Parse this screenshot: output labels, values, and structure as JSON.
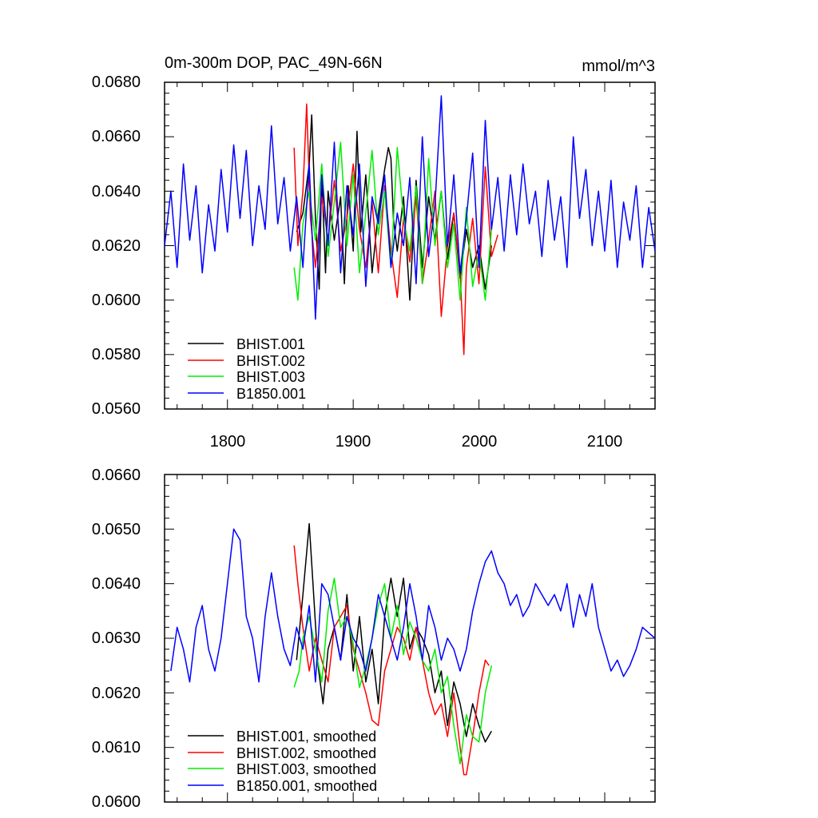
{
  "figure": {
    "layout": "two stacked panels"
  },
  "chart_data": [
    {
      "type": "line",
      "title": "0m-300m DOP, PAC_49N-66N",
      "units": "mmol/m^3",
      "xlabel": "",
      "ylabel": "",
      "xlim": [
        1750,
        2140
      ],
      "ylim": [
        0.056,
        0.068
      ],
      "xticks": [
        1800,
        1900,
        2000,
        2100
      ],
      "xtick_labels": [
        "1800",
        "1900",
        "2000",
        "2100"
      ],
      "yticks": [
        0.056,
        0.058,
        0.06,
        0.062,
        0.064,
        0.066,
        0.068
      ],
      "ytick_labels": [
        "0.0560",
        "0.0580",
        "0.0600",
        "0.0620",
        "0.0640",
        "0.0660",
        "0.0680"
      ],
      "legend_position": "bottom-left",
      "series": [
        {
          "name": "BHIST.001",
          "color": "#000000",
          "x": [
            1855,
            1860,
            1865,
            1867,
            1870,
            1873,
            1875,
            1878,
            1880,
            1885,
            1890,
            1893,
            1896,
            1900,
            1903,
            1906,
            1910,
            1915,
            1920,
            1925,
            1928,
            1930,
            1932,
            1935,
            1940,
            1945,
            1948,
            1950,
            1955,
            1960,
            1965,
            1970,
            1975,
            1980,
            1985,
            1990,
            1995,
            2000,
            2005,
            2010
          ],
          "values": [
            0.0625,
            0.0632,
            0.065,
            0.0668,
            0.063,
            0.0604,
            0.0646,
            0.061,
            0.064,
            0.0622,
            0.0638,
            0.0606,
            0.0642,
            0.0618,
            0.0662,
            0.0625,
            0.0646,
            0.061,
            0.0632,
            0.0648,
            0.0656,
            0.0652,
            0.063,
            0.0618,
            0.0638,
            0.06,
            0.0626,
            0.0644,
            0.0612,
            0.0638,
            0.0622,
            0.064,
            0.0615,
            0.0632,
            0.0608,
            0.0626,
            0.0612,
            0.062,
            0.0604,
            0.062
          ]
        },
        {
          "name": "BHIST.002",
          "color": "#ff0000",
          "x": [
            1853,
            1856,
            1860,
            1863,
            1866,
            1870,
            1875,
            1880,
            1885,
            1890,
            1895,
            1900,
            1905,
            1910,
            1915,
            1920,
            1925,
            1930,
            1935,
            1940,
            1945,
            1950,
            1955,
            1960,
            1965,
            1970,
            1975,
            1980,
            1985,
            1988,
            1990,
            1995,
            2000,
            2005,
            2010,
            2015
          ],
          "values": [
            0.0656,
            0.062,
            0.064,
            0.0672,
            0.063,
            0.0612,
            0.0638,
            0.0622,
            0.0644,
            0.0618,
            0.063,
            0.065,
            0.0626,
            0.0612,
            0.0636,
            0.061,
            0.0642,
            0.0618,
            0.0601,
            0.063,
            0.0614,
            0.0638,
            0.0606,
            0.0622,
            0.064,
            0.0594,
            0.062,
            0.0632,
            0.061,
            0.058,
            0.0612,
            0.063,
            0.0606,
            0.0649,
            0.0616,
            0.0624
          ]
        },
        {
          "name": "BHIST.003",
          "color": "#00ee00",
          "x": [
            1853,
            1856,
            1860,
            1865,
            1870,
            1875,
            1880,
            1885,
            1890,
            1895,
            1900,
            1905,
            1910,
            1915,
            1920,
            1925,
            1930,
            1935,
            1940,
            1945,
            1950,
            1955,
            1960,
            1965,
            1970,
            1975,
            1980,
            1985,
            1990,
            1995,
            2000,
            2005,
            2010
          ],
          "values": [
            0.0612,
            0.06,
            0.0628,
            0.064,
            0.0622,
            0.065,
            0.0616,
            0.0636,
            0.0658,
            0.062,
            0.0646,
            0.061,
            0.0632,
            0.0655,
            0.0624,
            0.064,
            0.0612,
            0.0656,
            0.063,
            0.0618,
            0.0642,
            0.0606,
            0.0652,
            0.062,
            0.064,
            0.0612,
            0.0628,
            0.06,
            0.0634,
            0.0605,
            0.0618,
            0.06,
            0.0626
          ]
        },
        {
          "name": "B1850.001",
          "color": "#0000ff",
          "x": [
            1750,
            1755,
            1760,
            1765,
            1770,
            1775,
            1780,
            1785,
            1790,
            1795,
            1800,
            1805,
            1810,
            1815,
            1820,
            1825,
            1830,
            1835,
            1840,
            1845,
            1850,
            1855,
            1860,
            1865,
            1870,
            1875,
            1880,
            1885,
            1890,
            1895,
            1900,
            1905,
            1910,
            1915,
            1920,
            1925,
            1930,
            1935,
            1940,
            1945,
            1950,
            1955,
            1960,
            1965,
            1970,
            1975,
            1980,
            1985,
            1990,
            1995,
            2000,
            2005,
            2010,
            2015,
            2020,
            2025,
            2030,
            2035,
            2040,
            2045,
            2050,
            2055,
            2060,
            2065,
            2070,
            2075,
            2080,
            2085,
            2090,
            2095,
            2100,
            2105,
            2110,
            2115,
            2120,
            2125,
            2130,
            2135,
            2140
          ],
          "values": [
            0.062,
            0.064,
            0.0612,
            0.065,
            0.0622,
            0.0642,
            0.061,
            0.0635,
            0.0618,
            0.0648,
            0.0625,
            0.0657,
            0.063,
            0.0655,
            0.062,
            0.0642,
            0.0626,
            0.0664,
            0.0628,
            0.0645,
            0.0618,
            0.0638,
            0.0612,
            0.065,
            0.0593,
            0.0646,
            0.062,
            0.0658,
            0.061,
            0.0642,
            0.0624,
            0.065,
            0.0605,
            0.0638,
            0.0628,
            0.0646,
            0.0612,
            0.0632,
            0.062,
            0.0645,
            0.0606,
            0.066,
            0.0616,
            0.0635,
            0.0675,
            0.062,
            0.0646,
            0.061,
            0.063,
            0.0654,
            0.0612,
            0.0666,
            0.0626,
            0.0645,
            0.0618,
            0.0646,
            0.0624,
            0.065,
            0.0628,
            0.064,
            0.0616,
            0.0644,
            0.0622,
            0.0638,
            0.0612,
            0.066,
            0.063,
            0.0648,
            0.062,
            0.064,
            0.0618,
            0.0644,
            0.0612,
            0.0636,
            0.0622,
            0.0642,
            0.0612,
            0.0634,
            0.0618
          ]
        }
      ]
    },
    {
      "type": "line",
      "title": "",
      "xlabel": "",
      "ylabel": "",
      "xlim": [
        1750,
        2140
      ],
      "ylim": [
        0.06,
        0.066
      ],
      "xticks": [
        1800,
        1900,
        2000,
        2100
      ],
      "xtick_labels": [],
      "yticks": [
        0.06,
        0.061,
        0.062,
        0.063,
        0.064,
        0.065,
        0.066
      ],
      "ytick_labels": [
        "0.0600",
        "0.0610",
        "0.0620",
        "0.0630",
        "0.0640",
        "0.0650",
        "0.0660"
      ],
      "legend_position": "bottom-left",
      "series": [
        {
          "name": "BHIST.001, smoothed",
          "color": "#000000",
          "x": [
            1855,
            1860,
            1865,
            1868,
            1872,
            1876,
            1880,
            1885,
            1890,
            1895,
            1900,
            1905,
            1910,
            1915,
            1920,
            1925,
            1930,
            1935,
            1940,
            1945,
            1950,
            1955,
            1960,
            1965,
            1970,
            1975,
            1980,
            1985,
            1990,
            1995,
            2000,
            2005,
            2010
          ],
          "values": [
            0.0626,
            0.0638,
            0.0651,
            0.064,
            0.0625,
            0.0618,
            0.0628,
            0.0632,
            0.0626,
            0.0638,
            0.0624,
            0.0634,
            0.0622,
            0.0628,
            0.0618,
            0.0634,
            0.0641,
            0.0634,
            0.0641,
            0.0628,
            0.0632,
            0.063,
            0.0627,
            0.062,
            0.0624,
            0.0614,
            0.0622,
            0.0618,
            0.0612,
            0.0618,
            0.0614,
            0.0611,
            0.0613
          ]
        },
        {
          "name": "BHIST.002, smoothed",
          "color": "#ff0000",
          "x": [
            1853,
            1856,
            1860,
            1865,
            1870,
            1875,
            1880,
            1885,
            1890,
            1895,
            1900,
            1905,
            1910,
            1915,
            1920,
            1925,
            1930,
            1935,
            1940,
            1945,
            1950,
            1955,
            1960,
            1965,
            1970,
            1975,
            1980,
            1985,
            1988,
            1990,
            1995,
            2000,
            2005,
            2008
          ],
          "values": [
            0.0647,
            0.064,
            0.0632,
            0.0624,
            0.063,
            0.0626,
            0.0622,
            0.0632,
            0.0634,
            0.0636,
            0.0628,
            0.0624,
            0.062,
            0.0615,
            0.0614,
            0.0624,
            0.0628,
            0.0632,
            0.063,
            0.0626,
            0.0632,
            0.0626,
            0.062,
            0.0616,
            0.0618,
            0.0612,
            0.062,
            0.061,
            0.0605,
            0.0605,
            0.0612,
            0.062,
            0.0626,
            0.0625
          ]
        },
        {
          "name": "BHIST.003, smoothed",
          "color": "#00ee00",
          "x": [
            1853,
            1857,
            1860,
            1865,
            1870,
            1875,
            1880,
            1885,
            1890,
            1895,
            1900,
            1905,
            1910,
            1915,
            1920,
            1925,
            1930,
            1935,
            1940,
            1945,
            1950,
            1955,
            1960,
            1965,
            1970,
            1975,
            1980,
            1985,
            1990,
            1995,
            2000,
            2005,
            2010
          ],
          "values": [
            0.0621,
            0.0624,
            0.063,
            0.0634,
            0.0628,
            0.0622,
            0.0635,
            0.0641,
            0.0632,
            0.0634,
            0.0629,
            0.0621,
            0.0625,
            0.063,
            0.0636,
            0.064,
            0.063,
            0.0636,
            0.0627,
            0.0633,
            0.063,
            0.0626,
            0.0624,
            0.0628,
            0.062,
            0.0623,
            0.0614,
            0.0607,
            0.0616,
            0.0612,
            0.0611,
            0.062,
            0.0625
          ]
        },
        {
          "name": "B1850.001, smoothed",
          "color": "#0000ff",
          "x": [
            1755,
            1760,
            1765,
            1770,
            1775,
            1780,
            1785,
            1790,
            1795,
            1800,
            1805,
            1810,
            1815,
            1820,
            1825,
            1830,
            1835,
            1840,
            1845,
            1850,
            1855,
            1860,
            1865,
            1870,
            1875,
            1880,
            1885,
            1890,
            1895,
            1900,
            1905,
            1910,
            1915,
            1920,
            1925,
            1930,
            1935,
            1940,
            1945,
            1950,
            1955,
            1960,
            1965,
            1970,
            1975,
            1980,
            1985,
            1990,
            1995,
            2000,
            2005,
            2010,
            2015,
            2020,
            2025,
            2030,
            2035,
            2040,
            2045,
            2050,
            2055,
            2060,
            2065,
            2070,
            2075,
            2080,
            2085,
            2090,
            2095,
            2100,
            2105,
            2110,
            2115,
            2120,
            2125,
            2130,
            2135,
            2140
          ],
          "values": [
            0.0624,
            0.0632,
            0.0628,
            0.0622,
            0.0632,
            0.0636,
            0.0628,
            0.0624,
            0.063,
            0.064,
            0.065,
            0.0648,
            0.0634,
            0.063,
            0.0622,
            0.0634,
            0.0642,
            0.0634,
            0.0628,
            0.0625,
            0.0632,
            0.0628,
            0.0636,
            0.0622,
            0.064,
            0.0638,
            0.0632,
            0.0626,
            0.0634,
            0.063,
            0.0628,
            0.0624,
            0.063,
            0.0638,
            0.0634,
            0.063,
            0.0626,
            0.0632,
            0.064,
            0.0634,
            0.0626,
            0.0636,
            0.0632,
            0.0626,
            0.063,
            0.0628,
            0.0624,
            0.0628,
            0.0635,
            0.064,
            0.0644,
            0.0646,
            0.0642,
            0.064,
            0.0636,
            0.0638,
            0.0634,
            0.0636,
            0.064,
            0.0638,
            0.0636,
            0.0638,
            0.0635,
            0.064,
            0.0632,
            0.0638,
            0.0634,
            0.064,
            0.0632,
            0.0628,
            0.0624,
            0.0626,
            0.0623,
            0.0625,
            0.0628,
            0.0632,
            0.0631,
            0.063
          ]
        }
      ]
    }
  ]
}
